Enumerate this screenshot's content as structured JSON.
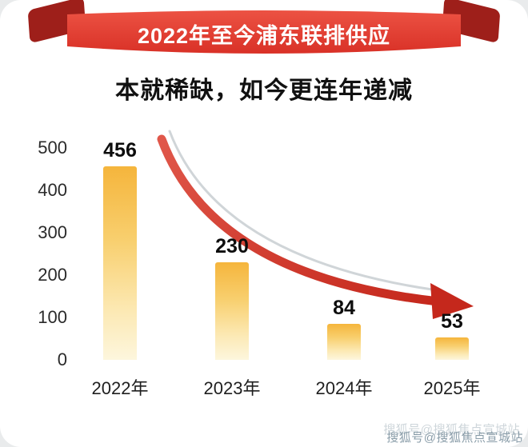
{
  "header": {
    "title": "2022年至今浦东联排供应",
    "subtitle": "本就稀缺，如今更连年递减"
  },
  "chart_data": {
    "type": "bar",
    "title": "2022年至今浦东联排供应",
    "subtitle": "本就稀缺，如今更连年递减",
    "categories": [
      "2022年",
      "2023年",
      "2024年",
      "2025年"
    ],
    "values": [
      456,
      230,
      84,
      53
    ],
    "xlabel": "",
    "ylabel": "",
    "ylim": [
      0,
      500
    ],
    "yticks": [
      0,
      100,
      200,
      300,
      400,
      500
    ],
    "grid": false,
    "legend": false,
    "annotation": "red curved arrow indicating year-over-year decline",
    "bar_color_top": "#f5b53c",
    "bar_color_bottom": "#fdf6dd"
  },
  "colors": {
    "ribbon_red": "#e5413a",
    "ribbon_red_dark": "#d32f27",
    "fold_dark_red": "#9e1f1a",
    "arrow_red_light": "#e0574a",
    "arrow_red_dark": "#c5281c",
    "arrow_shadow_gray": "#bcc3c8"
  },
  "watermark": {
    "text": "搜狐号@搜狐焦点宣城站"
  }
}
